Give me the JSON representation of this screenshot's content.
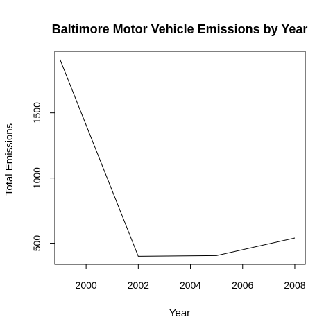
{
  "chart_data": {
    "type": "line",
    "title": "Baltimore Motor Vehicle Emissions by Year",
    "xlabel": "Year",
    "ylabel": "Total Emissions",
    "x": [
      1999,
      2002,
      2005,
      2008
    ],
    "series": [
      {
        "values": [
          1910,
          400,
          405,
          540
        ]
      }
    ],
    "xlim": [
      1998.8,
      2008.4
    ],
    "ylim": [
      338,
      1972
    ],
    "xticks": [
      2000,
      2002,
      2004,
      2006,
      2008
    ],
    "yticks": [
      500,
      1000,
      1500
    ],
    "grid": false,
    "line_color": "#000000"
  }
}
